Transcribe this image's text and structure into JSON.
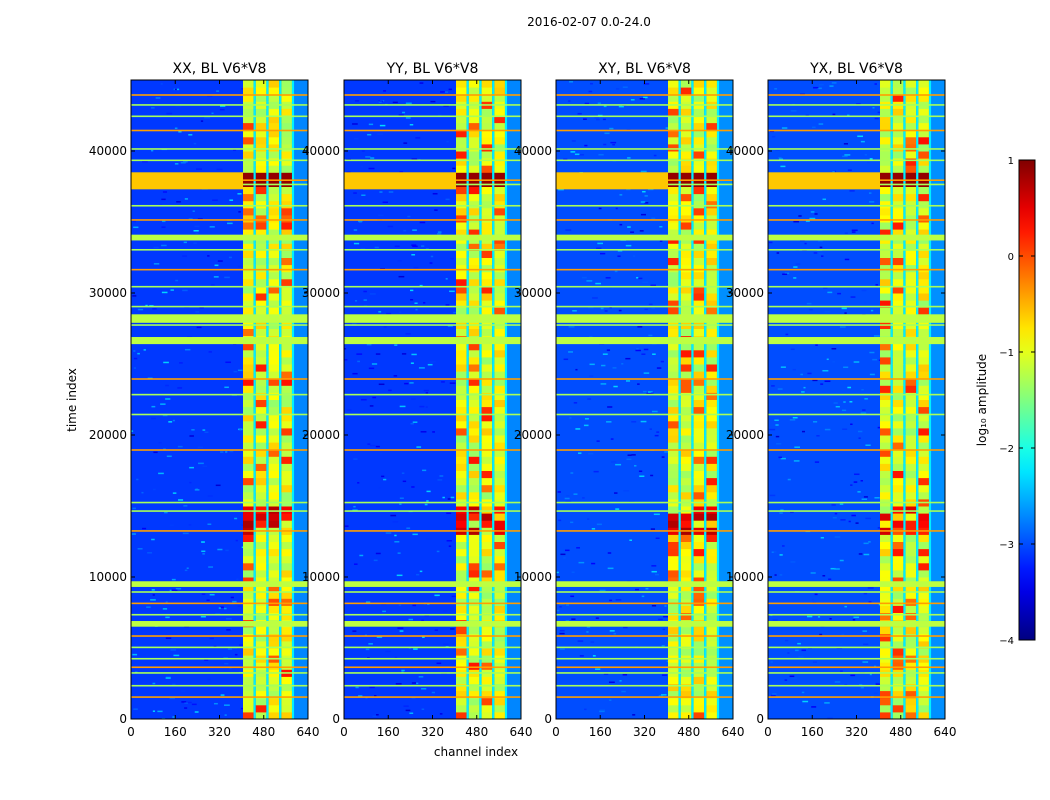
{
  "chart_data": {
    "type": "heatmap",
    "title": "2016-02-07 0.0-24.0",
    "xlabel": "channel index",
    "ylabel": "time index",
    "xlim": [
      0,
      640
    ],
    "ylim": [
      0,
      45000
    ],
    "xticks": [
      0,
      160,
      320,
      480,
      640
    ],
    "yticks": [
      0,
      10000,
      20000,
      30000,
      40000
    ],
    "colorbar": {
      "label": "log₁₀ amplitude",
      "range": [
        -4,
        1
      ],
      "ticks": [
        "1",
        "0",
        "−1",
        "−2",
        "−3",
        "−4"
      ],
      "colormap": "jet"
    },
    "panels": [
      {
        "title": "XX, BL V6*V8",
        "band_start": 405,
        "band_end": 590,
        "background_level": -3.1
      },
      {
        "title": "YY, BL V6*V8",
        "band_start": 405,
        "band_end": 590,
        "background_level": -3.1
      },
      {
        "title": "XY, BL V6*V8",
        "band_start": 405,
        "band_end": 590,
        "background_level": -3.0
      },
      {
        "title": "YX, BL V6*V8",
        "band_start": 405,
        "band_end": 590,
        "background_level": -3.0
      }
    ],
    "strong_rfi_time_ranges": [
      [
        37300,
        38500
      ]
    ],
    "broadband_rows": [
      1600,
      2400,
      3300,
      3700,
      4300,
      5100,
      5900,
      6700,
      7400,
      8200,
      9000,
      9600,
      13300,
      14700,
      15300,
      19000,
      21500,
      22900,
      24000,
      26600,
      27800,
      28200,
      29100,
      30500,
      31700,
      33100,
      34100,
      35200,
      36200,
      37700,
      38000,
      39400,
      40200,
      41500,
      42500,
      43300,
      44000
    ]
  }
}
